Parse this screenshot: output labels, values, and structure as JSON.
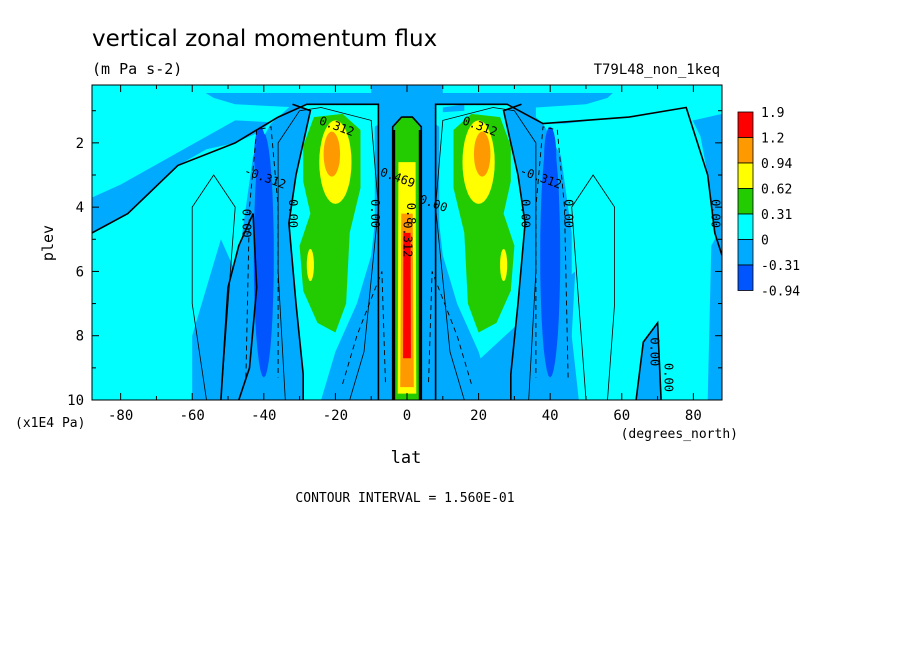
{
  "chart_data": {
    "type": "heatmap",
    "title": "vertical zonal momentum flux",
    "units": "(m Pa s-2)",
    "dataset": "T79L48_non_1keq",
    "xlabel": "lat",
    "xunits": "(degrees_north)",
    "ylabel": "plev",
    "yunits": "(x1E4 Pa)",
    "xlim": [
      -88,
      88
    ],
    "ylim": [
      10,
      0.2
    ],
    "xticks": [
      -80,
      -60,
      -40,
      -20,
      0,
      20,
      40,
      60,
      80
    ],
    "yticks": [
      2,
      4,
      6,
      8,
      10
    ],
    "footer": "CONTOUR INTERVAL = 1.560E-01",
    "colorbar": {
      "labels": [
        "1.9",
        "1.2",
        "0.94",
        "0.62",
        "0.31",
        "0",
        "-0.31",
        "-0.94"
      ],
      "colors": [
        "#ff0000",
        "#ff9900",
        "#ffff00",
        "#22cc00",
        "#00ffff",
        "#00aaff",
        "#0055ff"
      ]
    },
    "contour_labels": [
      {
        "text": "0.312",
        "lat": -20,
        "plev": 1.6
      },
      {
        "text": "0.312",
        "lat": 20,
        "plev": 1.6
      },
      {
        "text": "-0.312",
        "lat": -40,
        "plev": 3.2
      },
      {
        "text": "-0.312",
        "lat": 37,
        "plev": 3.2
      },
      {
        "text": "0.00",
        "lat": -46,
        "plev": 4.5
      },
      {
        "text": "0.00",
        "lat": -33,
        "plev": 4.2
      },
      {
        "text": "0.00",
        "lat": -10,
        "plev": 4.2
      },
      {
        "text": "0.00",
        "lat": 7,
        "plev": 4.0
      },
      {
        "text": "0.00",
        "lat": 32,
        "plev": 4.2
      },
      {
        "text": "0.00",
        "lat": 44,
        "plev": 4.2
      },
      {
        "text": "0.00",
        "lat": 85,
        "plev": 4.2
      },
      {
        "text": "0.469",
        "lat": -3,
        "plev": 3.2
      },
      {
        "text": "0.8",
        "lat": 0,
        "plev": 4.2
      },
      {
        "text": "0.312",
        "lat": -1,
        "plev": 5.0
      },
      {
        "text": "0.00",
        "lat": 68,
        "plev": 8.5
      },
      {
        "text": "0.00",
        "lat": 72,
        "plev": 9.3
      }
    ]
  }
}
